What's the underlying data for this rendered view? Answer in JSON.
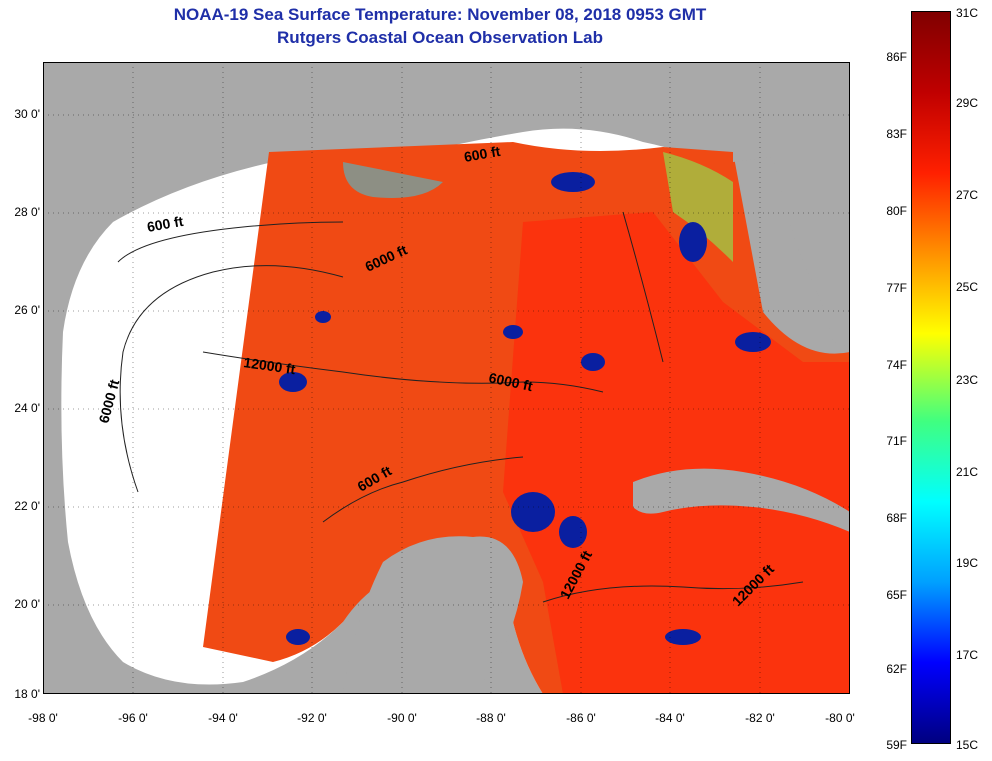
{
  "title": {
    "line1": "NOAA-19 Sea Surface Temperature:  November 08, 2018 0953 GMT",
    "line2": "Rutgers Coastal Ocean Observation Lab"
  },
  "latitude_labels": [
    "30 0'",
    "28 0'",
    "26 0'",
    "24 0'",
    "22 0'",
    "20 0'",
    "18 0'"
  ],
  "longitude_labels": [
    "-98 0'",
    "-96 0'",
    "-94 0'",
    "-92 0'",
    "-90 0'",
    "-88 0'",
    "-86 0'",
    "-84 0'",
    "-82 0'",
    "-80 0'"
  ],
  "contour_labels": [
    "600 ft",
    "600 ft",
    "6000 ft",
    "12000 ft",
    "6000 ft",
    "6000 ft",
    "600 ft",
    "12000 ft",
    "12000 ft"
  ],
  "colorbar": {
    "fahrenheit_labels": [
      "86F",
      "83F",
      "80F",
      "77F",
      "74F",
      "71F",
      "68F",
      "65F",
      "62F",
      "59F"
    ],
    "celsius_labels": [
      "31C",
      "29C",
      "27C",
      "25C",
      "23C",
      "21C",
      "19C",
      "17C",
      "15C"
    ],
    "colors": [
      "#000080",
      "#0000ff",
      "#00a0ff",
      "#00ffff",
      "#40ff80",
      "#ffff00",
      "#ff9000",
      "#ff2000",
      "#c00000",
      "#800000"
    ]
  },
  "colors": {
    "land": "#a9a9a9",
    "no_data": "#ffffff",
    "warm_water": "#f04a14",
    "cloud_cold": "#0a1fa0",
    "title_text": "#1f2fa8"
  }
}
